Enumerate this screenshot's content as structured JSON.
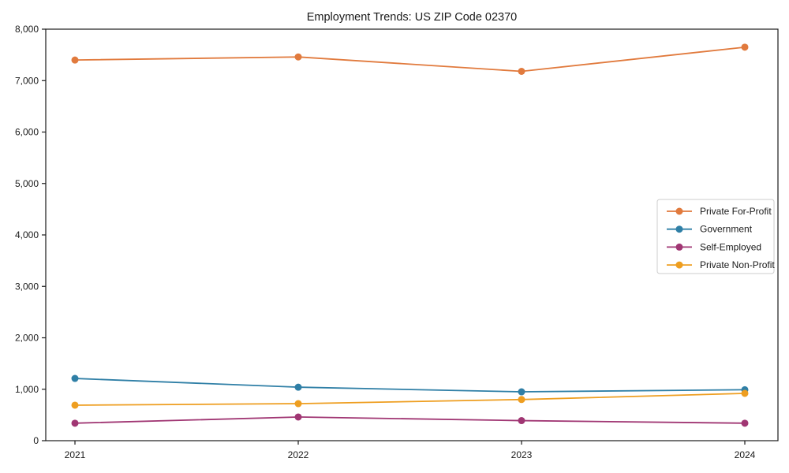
{
  "chart_data": {
    "type": "line",
    "title": "Employment Trends: US ZIP Code 02370",
    "categories": [
      "2021",
      "2022",
      "2023",
      "2024"
    ],
    "series": [
      {
        "name": "Private For-Profit",
        "color": "#E17A3D",
        "values": [
          7400,
          7460,
          7180,
          7650
        ]
      },
      {
        "name": "Government",
        "color": "#2F7FA6",
        "values": [
          1210,
          1040,
          950,
          990
        ]
      },
      {
        "name": "Self-Employed",
        "color": "#A03673",
        "values": [
          340,
          460,
          390,
          340
        ]
      },
      {
        "name": "Private Non-Profit",
        "color": "#EE9E20",
        "values": [
          690,
          720,
          800,
          920
        ]
      }
    ],
    "xlabel": "",
    "ylabel": "",
    "ylim": [
      0,
      8000
    ],
    "ytick_step": 1000,
    "ytick_labels": [
      "0",
      "1,000",
      "2,000",
      "3,000",
      "4,000",
      "5,000",
      "6,000",
      "7,000",
      "8,000"
    ],
    "grid": false,
    "legend_position": "center right",
    "axis_color": "#1a1a1a",
    "legend_border_color": "#cccccc",
    "background_color": "#ffffff"
  }
}
